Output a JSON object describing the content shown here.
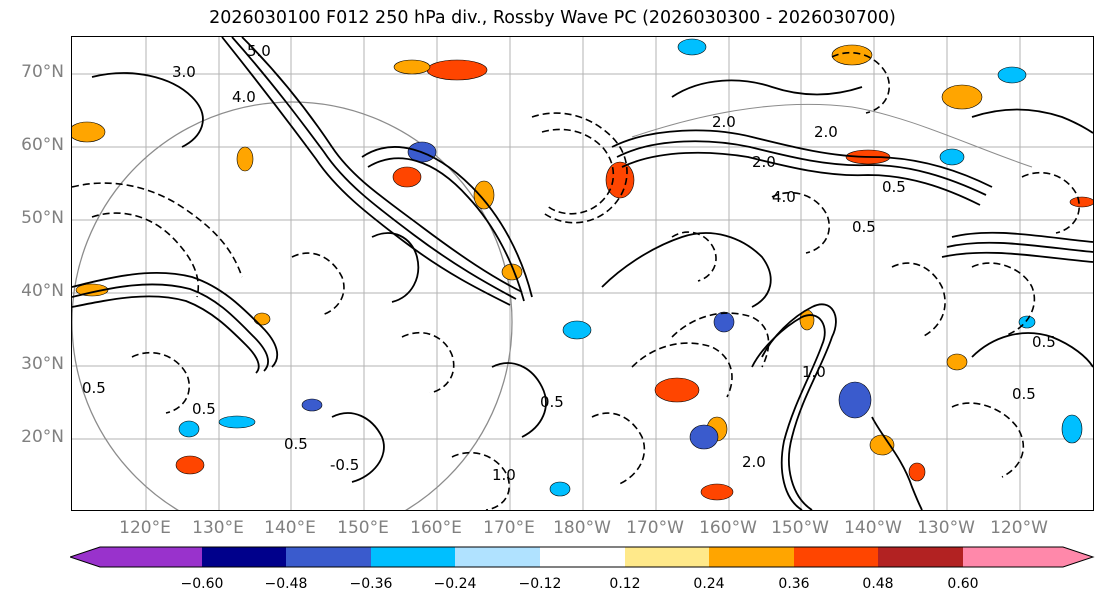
{
  "title": "2026030100 F012 250 hPa div., Rossby Wave PC (2026030300 - 2026030700)",
  "lat_labels": [
    "70°N",
    "60°N",
    "50°N",
    "40°N",
    "30°N",
    "20°N"
  ],
  "lon_labels": [
    "120°E",
    "130°E",
    "140°E",
    "150°E",
    "160°E",
    "170°E",
    "180°W",
    "170°W",
    "160°W",
    "150°W",
    "140°W",
    "130°W",
    "120°W"
  ],
  "colorbar": {
    "colors": [
      "#9932cc",
      "#00008b",
      "#3a5bcd",
      "#00bfff",
      "#b0e2ff",
      "#ffffff",
      "#ffe98a",
      "#ffa500",
      "#ff4500",
      "#b22222",
      "#ff88aa"
    ],
    "tick_labels": [
      "−0.60",
      "−0.48",
      "−0.36",
      "−0.24",
      "−0.12",
      "0.12",
      "0.24",
      "0.36",
      "0.48",
      "0.60"
    ]
  },
  "contour_labels": [
    "5.0",
    "3.0",
    "4.0",
    "2.0",
    "2.0",
    "2.0",
    "0.5",
    "0.5",
    "0.5",
    "-0.5",
    "1.0",
    "0.5",
    "0.5",
    "0.5",
    "4.0",
    "0.5",
    "0.5",
    "2.0",
    "1.0"
  ]
}
